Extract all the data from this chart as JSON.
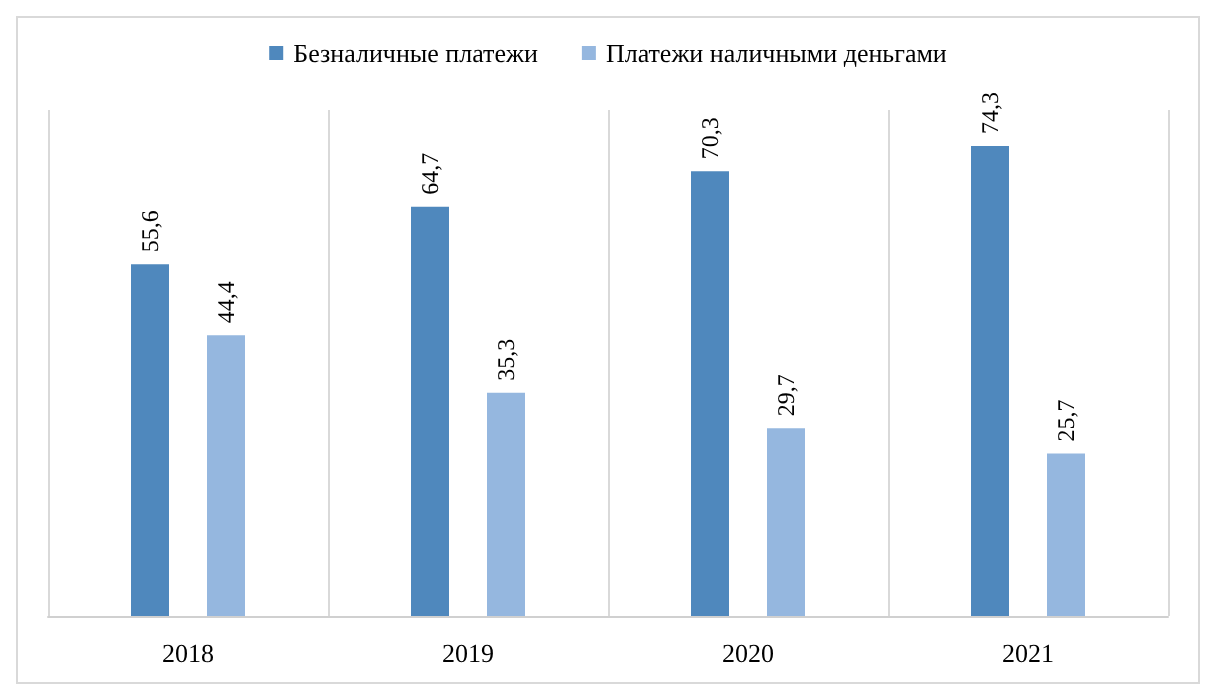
{
  "chart_data": {
    "type": "bar",
    "categories": [
      "2018",
      "2019",
      "2020",
      "2021"
    ],
    "series": [
      {
        "name": "Безналичные платежи",
        "color": "#4f88bd",
        "values": [
          55.6,
          64.7,
          70.3,
          74.3
        ],
        "value_labels": [
          "55,6",
          "64,7",
          "70,3",
          "74,3"
        ]
      },
      {
        "name": "Платежи наличными деньгами",
        "color": "#95b7df",
        "values": [
          44.4,
          35.3,
          29.7,
          25.7
        ],
        "value_labels": [
          "44,4",
          "35,3",
          "29,7",
          "25,7"
        ]
      }
    ],
    "grid": "x",
    "legend": "top"
  }
}
